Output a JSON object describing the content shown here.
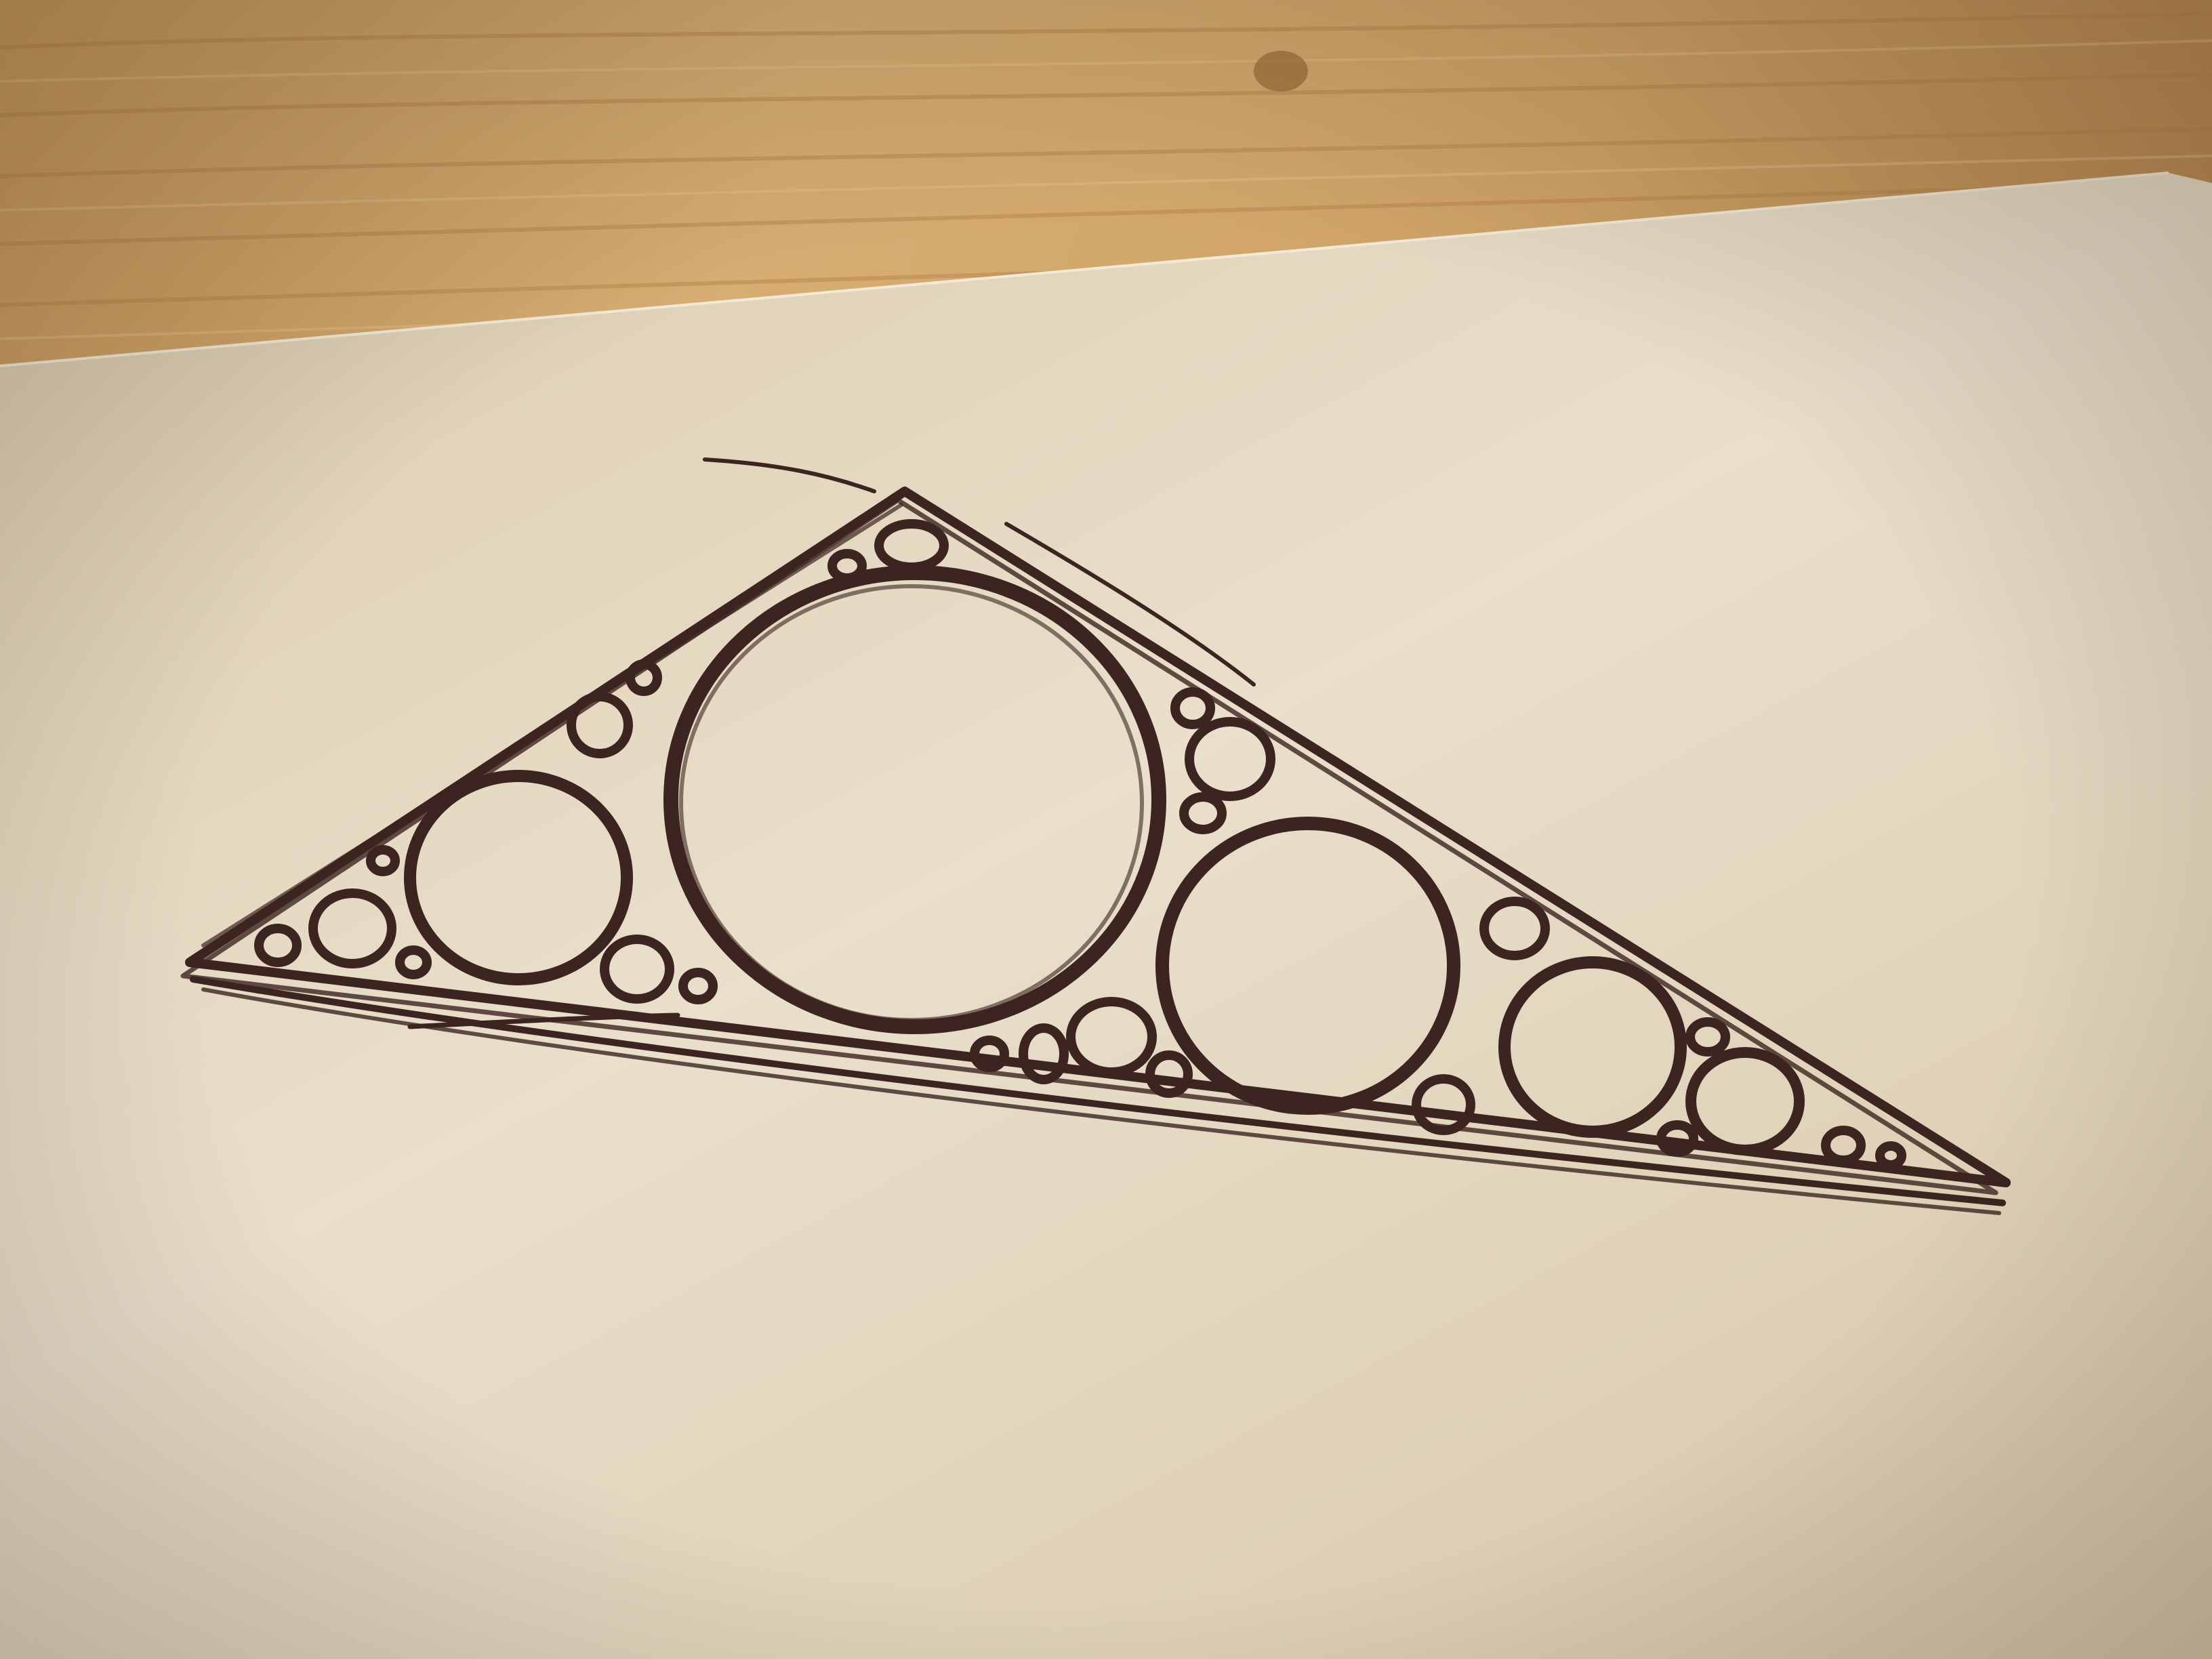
{
  "scene": {
    "subject": "pen-sketch-circles-packed-in-triangle",
    "palette": {
      "wood_light": "#d7ae72",
      "wood_dark": "#a97a45",
      "paper_light": "#ece2cf",
      "paper_shadow": "#d3c4a6",
      "ink": "#3c2420"
    }
  }
}
